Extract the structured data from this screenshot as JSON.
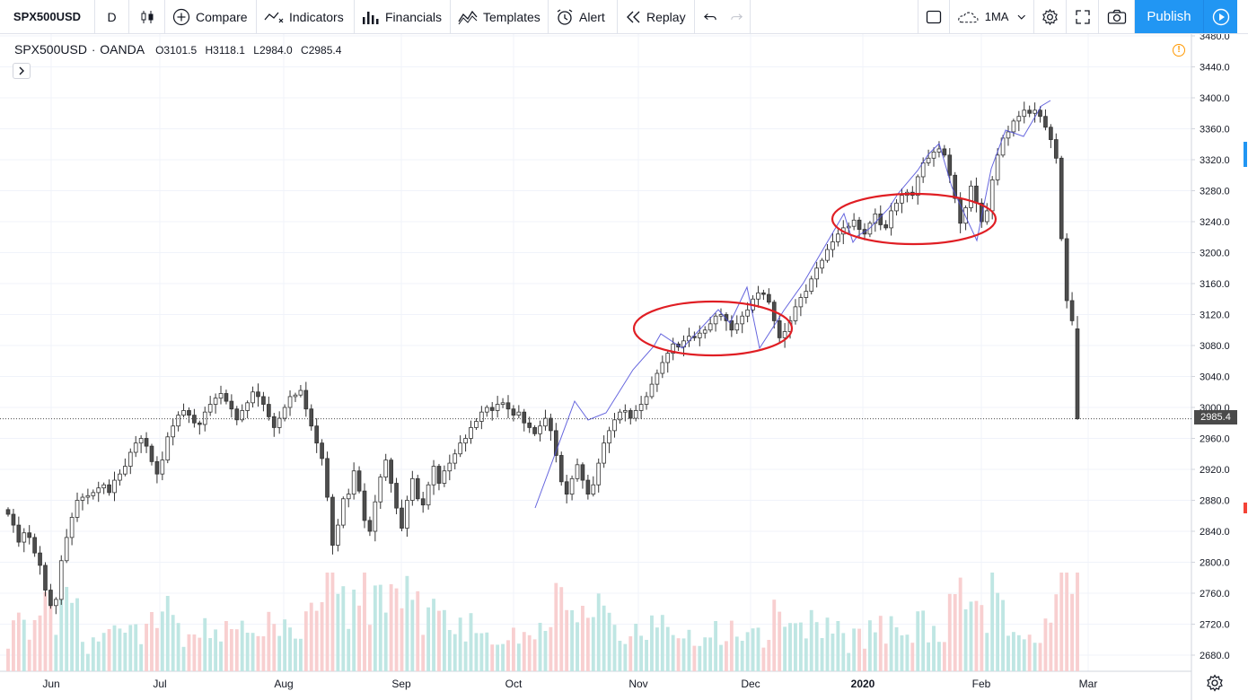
{
  "toolbar": {
    "symbol": "SPX500USD",
    "interval": "D",
    "compare_label": "Compare",
    "indicators_label": "Indicators",
    "financials_label": "Financials",
    "templates_label": "Templates",
    "alert_label": "Alert",
    "replay_label": "Replay",
    "ma_label": "1MA",
    "publish_label": "Publish"
  },
  "legend": {
    "symbol": "SPX500USD",
    "exchange": "OANDA",
    "o_label": "O",
    "o_value": "3101.5",
    "h_label": "H",
    "h_value": "3118.1",
    "l_label": "L",
    "l_value": "2984.0",
    "c_label": "C",
    "c_value": "2985.4"
  },
  "price_tag": "2985.4",
  "colors": {
    "up_candle": "#ffffff",
    "down_candle": "#4d4d4d",
    "wick": "#333333",
    "trend_line": "#4b4bd8",
    "ellipse": "#e01e24",
    "up_volume": "#bfe6e3",
    "down_volume": "#f8cfd0",
    "grid": "#f0f3fa",
    "accent": "#2196f3"
  },
  "chart_data": {
    "type": "candlestick",
    "symbol": "SPX500USD",
    "exchange": "OANDA",
    "interval": "D",
    "y_axis_ticks": [
      2680,
      2720,
      2760,
      2800,
      2840,
      2880,
      2920,
      2960,
      3000,
      3040,
      3080,
      3120,
      3160,
      3200,
      3240,
      3280,
      3320,
      3360,
      3400,
      3440,
      3480
    ],
    "ylim": [
      2665,
      3483
    ],
    "x_axis_labels": [
      "Jun",
      "Jul",
      "Aug",
      "Sep",
      "Oct",
      "Nov",
      "Dec",
      "2020",
      "Feb",
      "Mar"
    ],
    "grid": true,
    "last_price": 2985.4,
    "closes": [
      2862,
      2848,
      2826,
      2838,
      2832,
      2812,
      2796,
      2764,
      2744,
      2752,
      2802,
      2832,
      2858,
      2880,
      2884,
      2886,
      2890,
      2896,
      2900,
      2890,
      2906,
      2914,
      2924,
      2942,
      2954,
      2960,
      2950,
      2930,
      2914,
      2932,
      2962,
      2976,
      2990,
      2996,
      2990,
      2980,
      2978,
      2994,
      3004,
      3012,
      3018,
      3008,
      2998,
      2984,
      2996,
      3006,
      3020,
      3014,
      3004,
      2988,
      2974,
      2986,
      3000,
      3014,
      3016,
      3022,
      2998,
      2976,
      2954,
      2934,
      2884,
      2822,
      2848,
      2882,
      2888,
      2918,
      2892,
      2854,
      2840,
      2878,
      2910,
      2932,
      2902,
      2870,
      2844,
      2880,
      2908,
      2882,
      2874,
      2900,
      2924,
      2902,
      2918,
      2928,
      2940,
      2954,
      2960,
      2974,
      2982,
      2994,
      3000,
      2996,
      3004,
      3006,
      2998,
      2990,
      2994,
      2980,
      2974,
      2966,
      2976,
      2986,
      2970,
      2938,
      2904,
      2888,
      2908,
      2926,
      2906,
      2888,
      2900,
      2928,
      2954,
      2970,
      2984,
      2994,
      2996,
      2986,
      2996,
      3004,
      3014,
      3030,
      3044,
      3058,
      3070,
      3082,
      3078,
      3086,
      3092,
      3090,
      3096,
      3100,
      3108,
      3118,
      3120,
      3112,
      3100,
      3108,
      3118,
      3126,
      3140,
      3148,
      3146,
      3136,
      3112,
      3090,
      3098,
      3112,
      3130,
      3142,
      3150,
      3166,
      3180,
      3190,
      3204,
      3214,
      3224,
      3232,
      3234,
      3242,
      3230,
      3224,
      3238,
      3250,
      3236,
      3232,
      3254,
      3264,
      3274,
      3278,
      3274,
      3298,
      3316,
      3322,
      3330,
      3334,
      3326,
      3300,
      3270,
      3238,
      3258,
      3286,
      3264,
      3240,
      3254,
      3294,
      3326,
      3348,
      3356,
      3370,
      3376,
      3384,
      3380,
      3384,
      3376,
      3362,
      3346,
      3322,
      3218,
      3138,
      3112,
      2985.4
    ]
  }
}
